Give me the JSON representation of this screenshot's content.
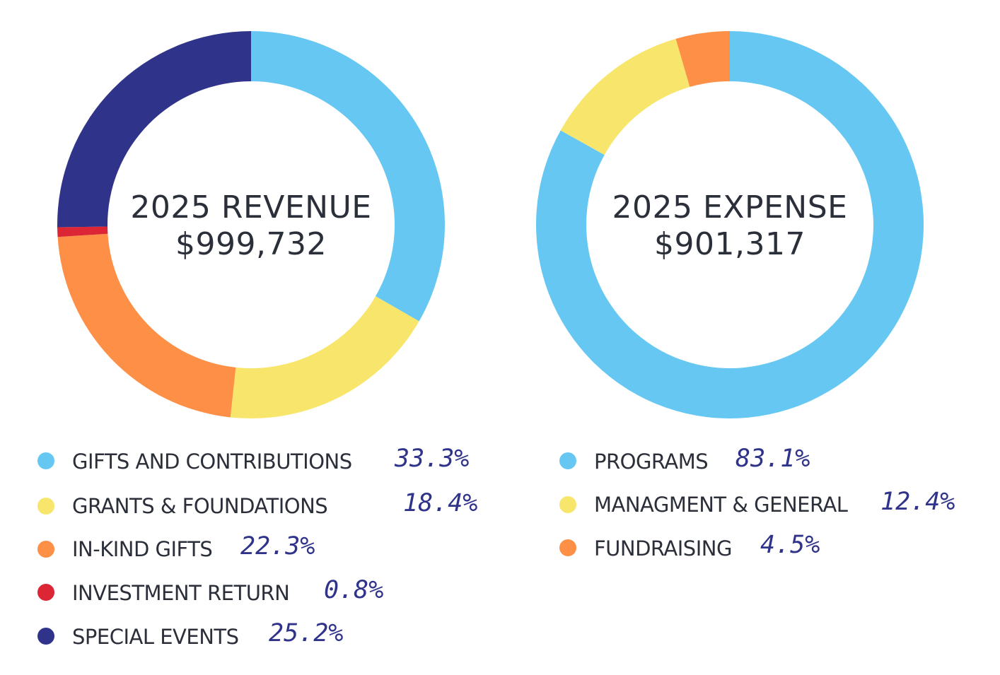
{
  "chart_data": [
    {
      "type": "pie",
      "title": "2025 REVENUE",
      "total": "$999,732",
      "categories": [
        "GIFTS AND CONTRIBUTIONS",
        "GRANTS & FOUNDATIONS",
        "IN-KIND GIFTS",
        "INVESTMENT RETURN",
        "SPECIAL EVENTS"
      ],
      "values": [
        33.3,
        18.4,
        22.3,
        0.8,
        25.2
      ],
      "labels": [
        "33.3%",
        "18.4%",
        "22.3%",
        "0.8%",
        "25.2%"
      ],
      "colors": [
        "#66c8f2",
        "#f8e66c",
        "#fd8f47",
        "#dc2535",
        "#2f3389"
      ],
      "legend": "bottom"
    },
    {
      "type": "pie",
      "title": "2025 EXPENSE",
      "total": "$901,317",
      "categories": [
        "PROGRAMS",
        "MANAGMENT & GENERAL",
        "FUNDRAISING"
      ],
      "values": [
        83.1,
        12.4,
        4.5
      ],
      "labels": [
        "83.1%",
        "12.4%",
        "4.5%"
      ],
      "colors": [
        "#66c8f2",
        "#f8e66c",
        "#fd8f47"
      ],
      "legend": "bottom"
    }
  ]
}
